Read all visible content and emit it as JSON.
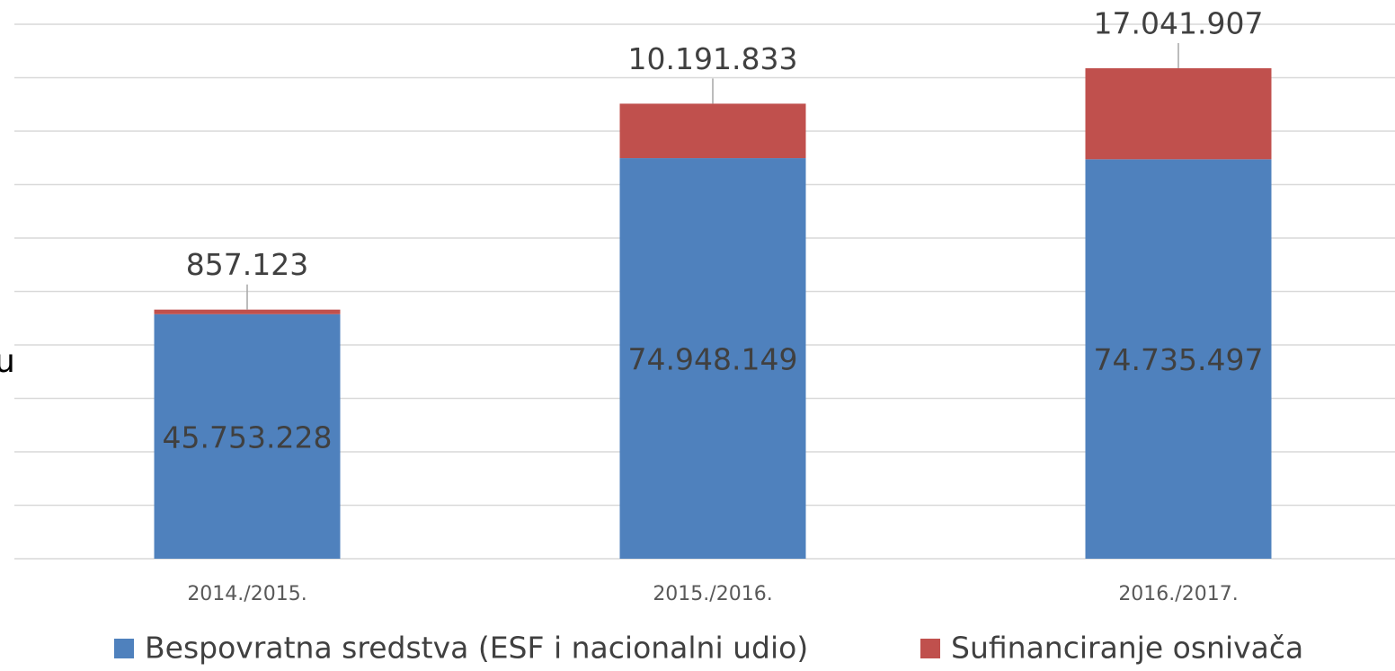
{
  "chart_data": {
    "type": "bar",
    "stacked": true,
    "y_label": "u",
    "categories": [
      "2014./2015.",
      "2015./2016.",
      "2016./2017."
    ],
    "series": [
      {
        "name": "Bespovratna sredstva (ESF i nacionalni udio)",
        "color": "#4f81bd",
        "values": [
          45753228,
          74948149,
          74735497
        ],
        "value_labels": [
          "45.753.228",
          "74.948.149",
          "74.735.497"
        ]
      },
      {
        "name": "Sufinanciranje osnivača",
        "color": "#c0504d",
        "values": [
          857123,
          10191833,
          17041907
        ],
        "value_labels": [
          "857.123",
          "10.191.833",
          "17.041.907"
        ]
      }
    ],
    "ylim": [
      0,
      100000000
    ],
    "yticks": [
      0,
      10000000,
      20000000,
      30000000,
      40000000,
      50000000,
      60000000,
      70000000,
      80000000,
      90000000,
      100000000
    ],
    "show_ytick_labels": false,
    "grid": true,
    "legend": "bottom"
  }
}
